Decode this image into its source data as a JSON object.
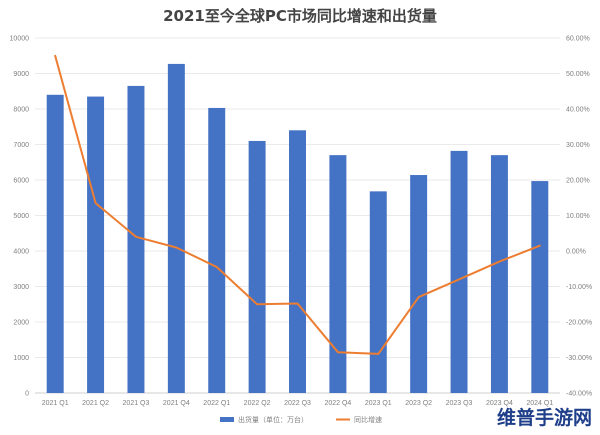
{
  "chart_data": {
    "type": "bar",
    "title": "2021至今全球PC市场同比增速和出货量",
    "categories": [
      "2021 Q1",
      "2021 Q2",
      "2021 Q3",
      "2021 Q4",
      "2022 Q1",
      "2022 Q2",
      "2022 Q3",
      "2022 Q4",
      "2023 Q1",
      "2023 Q2",
      "2023 Q3",
      "2023 Q4",
      "2024 Q1"
    ],
    "series": [
      {
        "name": "出货量（单位：万台）",
        "type": "bar",
        "axis": "left",
        "color": "#4472c4",
        "values": [
          8400,
          8350,
          8650,
          9270,
          8030,
          7100,
          7400,
          6700,
          5680,
          6140,
          6820,
          6700,
          5970
        ]
      },
      {
        "name": "同比增速",
        "type": "line",
        "axis": "right",
        "color": "#ed7d31",
        "values": [
          55.0,
          13.5,
          4.0,
          1.0,
          -4.5,
          -15.0,
          -14.8,
          -28.5,
          -29.0,
          -13.0,
          -8.0,
          -3.0,
          1.5
        ]
      }
    ],
    "y_left": {
      "min": 0,
      "max": 10000,
      "step": 1000,
      "ticks": [
        "0",
        "1000",
        "2000",
        "3000",
        "4000",
        "5000",
        "6000",
        "7000",
        "8000",
        "9000",
        "10000"
      ]
    },
    "y_right": {
      "min": -40,
      "max": 60,
      "step": 10,
      "ticks": [
        "-40.00%",
        "-30.00%",
        "-20.00%",
        "-10.00%",
        "0.00%",
        "10.00%",
        "20.00%",
        "30.00%",
        "40.00%",
        "50.00%",
        "60.00%"
      ]
    },
    "grid": true,
    "legend_position": "bottom"
  },
  "watermark": "维普手游网"
}
